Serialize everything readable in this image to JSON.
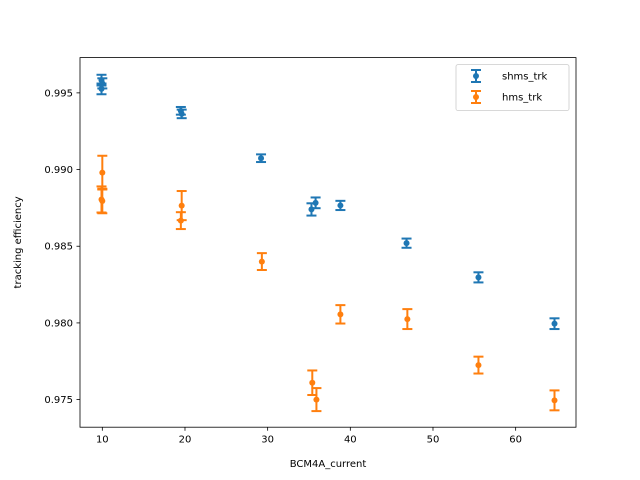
{
  "chart_data": {
    "type": "scatter",
    "title": "",
    "xlabel": "BCM4A_current",
    "ylabel": "tracking efficiency",
    "xlim": [
      7.3,
      67.3
    ],
    "ylim": [
      0.9732,
      0.9973
    ],
    "xticks": [
      10,
      20,
      30,
      40,
      50,
      60
    ],
    "xtick_labels": [
      "10",
      "20",
      "30",
      "40",
      "50",
      "60"
    ],
    "yticks": [
      0.975,
      0.98,
      0.985,
      0.99,
      0.995
    ],
    "ytick_labels": [
      "0.975",
      "0.980",
      "0.985",
      "0.990",
      "0.995"
    ],
    "grid": false,
    "legend_position": "upper right",
    "series": [
      {
        "name": "shms_trk",
        "color": "#1f77b4",
        "points": [
          {
            "x": 9.9,
            "y": 0.99583,
            "err": 0.00035
          },
          {
            "x": 10.0,
            "y": 0.99562,
            "err": 0.00033
          },
          {
            "x": 9.9,
            "y": 0.99526,
            "err": 0.00035
          },
          {
            "x": 19.5,
            "y": 0.99383,
            "err": 0.00025
          },
          {
            "x": 19.6,
            "y": 0.99363,
            "err": 0.00028
          },
          {
            "x": 29.2,
            "y": 0.99074,
            "err": 0.00025
          },
          {
            "x": 35.3,
            "y": 0.9874,
            "err": 0.0004
          },
          {
            "x": 35.8,
            "y": 0.98783,
            "err": 0.00035
          },
          {
            "x": 38.8,
            "y": 0.98766,
            "err": 0.0003
          },
          {
            "x": 46.8,
            "y": 0.9852,
            "err": 0.0003
          },
          {
            "x": 55.5,
            "y": 0.98297,
            "err": 0.00033
          },
          {
            "x": 64.7,
            "y": 0.97995,
            "err": 0.00035
          }
        ]
      },
      {
        "name": "hms_trk",
        "color": "#ff7f0e",
        "points": [
          {
            "x": 10.0,
            "y": 0.9898,
            "err": 0.0011
          },
          {
            "x": 9.9,
            "y": 0.98805,
            "err": 0.00085
          },
          {
            "x": 10.0,
            "y": 0.98795,
            "err": 0.0008
          },
          {
            "x": 19.6,
            "y": 0.98765,
            "err": 0.00095
          },
          {
            "x": 19.5,
            "y": 0.98667,
            "err": 0.00055
          },
          {
            "x": 29.3,
            "y": 0.984,
            "err": 0.00055
          },
          {
            "x": 35.4,
            "y": 0.9761,
            "err": 0.0008
          },
          {
            "x": 35.9,
            "y": 0.975,
            "err": 0.00075
          },
          {
            "x": 38.8,
            "y": 0.98056,
            "err": 0.0006
          },
          {
            "x": 46.9,
            "y": 0.98025,
            "err": 0.00065
          },
          {
            "x": 55.5,
            "y": 0.97725,
            "err": 0.00055
          },
          {
            "x": 64.7,
            "y": 0.97495,
            "err": 0.00065
          }
        ]
      }
    ]
  }
}
